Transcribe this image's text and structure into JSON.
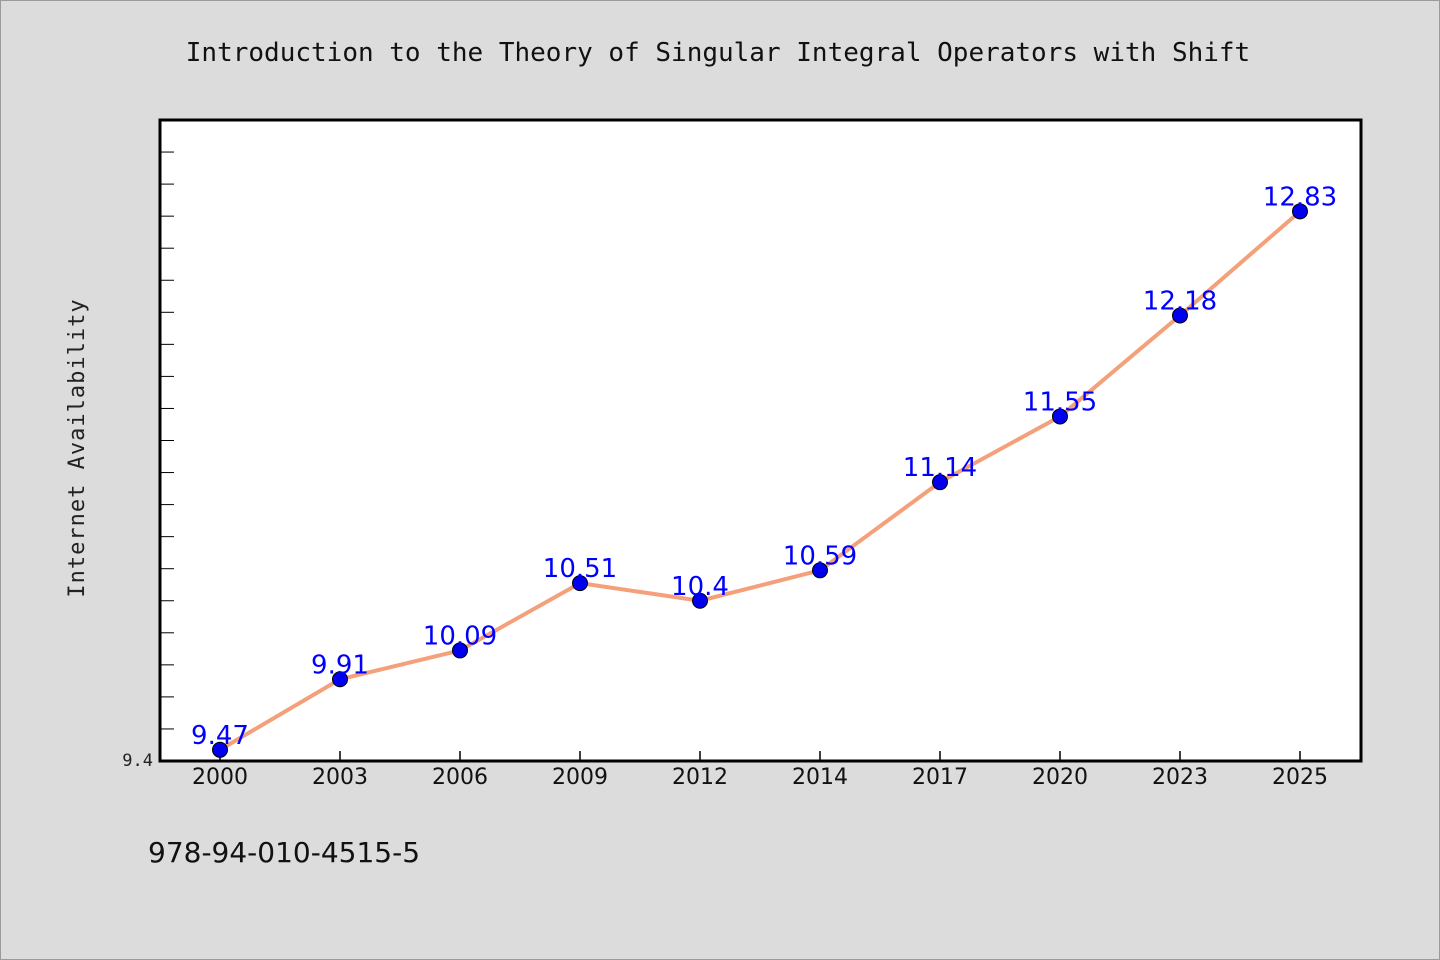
{
  "chart_data": {
    "type": "line",
    "title": "Introduction to the Theory of Singular Integral Operators with Shift",
    "xlabel": "",
    "ylabel": "Internet Availability",
    "categories": [
      "2000",
      "2003",
      "2006",
      "2009",
      "2012",
      "2014",
      "2017",
      "2020",
      "2023",
      "2025"
    ],
    "series": [
      {
        "values": [
          9.47,
          9.91,
          10.09,
          10.51,
          10.4,
          10.59,
          11.14,
          11.55,
          12.18,
          12.83
        ],
        "line_color": "#f4a07a",
        "marker_color": "#0000ee"
      }
    ],
    "data_labels": [
      "9.47",
      "9.91",
      "10.09",
      "10.51",
      "10.4",
      "10.59",
      "11.14",
      "11.55",
      "12.18",
      "12.83"
    ],
    "y_tick_labels": [
      "9.4"
    ],
    "ylim": [
      9.4,
      13.4
    ],
    "grid": false,
    "label_color": "#0000ff"
  },
  "footer": {
    "isbn": "978-94-010-4515-5"
  }
}
